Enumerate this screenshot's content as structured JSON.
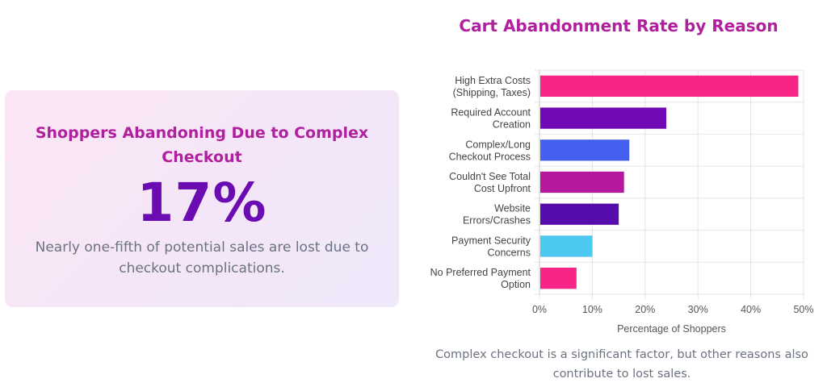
{
  "stat_card": {
    "title": "Shoppers Abandoning Due to Complex Checkout",
    "value": "17%",
    "description": "Nearly one-fifth of potential sales are lost due to checkout complications."
  },
  "caption": "Complex checkout is a significant factor, but other reasons also contribute to lost sales.",
  "chart_data": {
    "type": "bar",
    "orientation": "horizontal",
    "title": "Cart Abandonment Rate by Reason",
    "xlabel": "Percentage of Shoppers",
    "ylabel": "",
    "xlim": [
      0,
      50
    ],
    "x_ticks": [
      "0%",
      "10%",
      "20%",
      "30%",
      "40%",
      "50%"
    ],
    "grid": true,
    "categories": [
      [
        "High Extra Costs",
        "(Shipping, Taxes)"
      ],
      [
        "Required Account",
        "Creation"
      ],
      [
        "Complex/Long",
        "Checkout Process"
      ],
      [
        "Couldn't See Total",
        "Cost Upfront"
      ],
      [
        "Website",
        "Errors/Crashes"
      ],
      [
        "Payment Security",
        "Concerns"
      ],
      [
        "No Preferred Payment",
        "Option"
      ]
    ],
    "values": [
      49,
      24,
      17,
      16,
      15,
      10,
      7
    ],
    "colors": [
      "#f72585",
      "#7209b7",
      "#4361ee",
      "#b5179e",
      "#560bad",
      "#4cc9f0",
      "#f72585"
    ]
  }
}
